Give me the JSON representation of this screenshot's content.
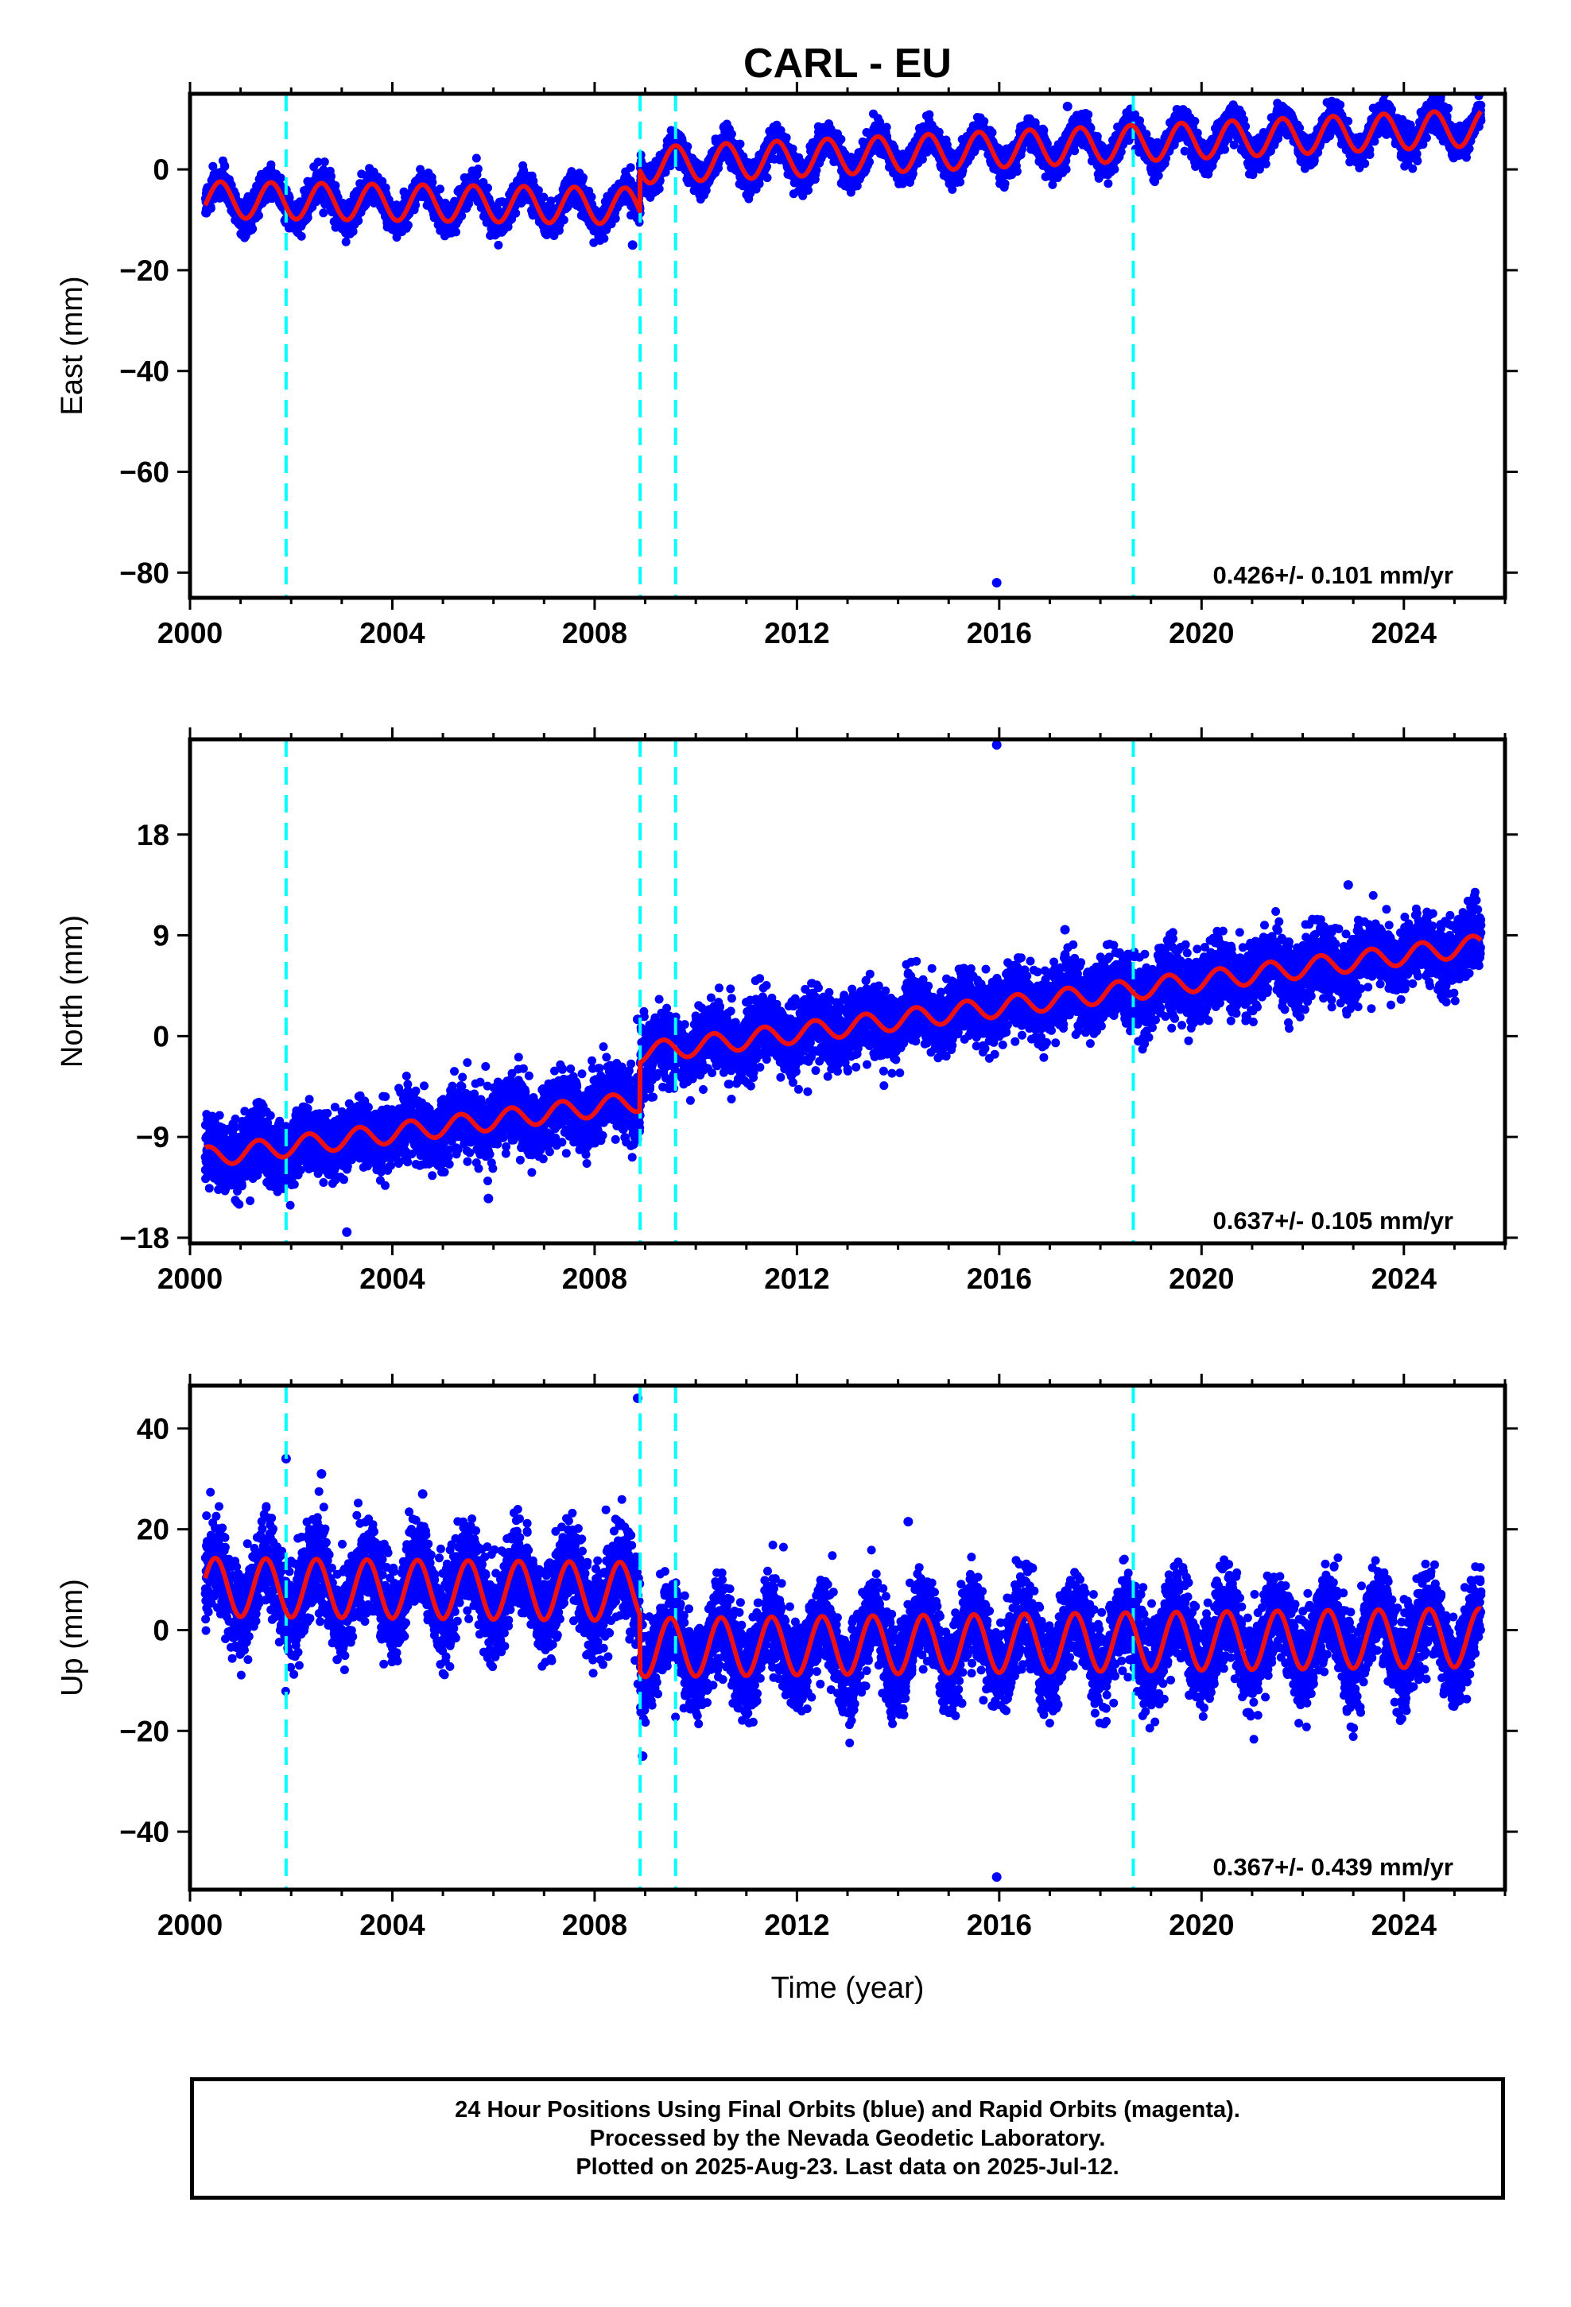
{
  "figure_title": "CARL - EU",
  "time_label": "Time (year)",
  "colors": {
    "points": "#0000ff",
    "fit": "#ee1111",
    "breaks": "#00ffff",
    "frame": "#000000"
  },
  "chart_data": [
    {
      "type": "scatter",
      "component": "East",
      "ylabel": "East (mm)",
      "xlim": [
        2000.0,
        2026.0
      ],
      "ylim": [
        -85,
        15
      ],
      "x_ticks": [
        2000,
        2004,
        2008,
        2012,
        2016,
        2020,
        2024
      ],
      "y_ticks": [
        0,
        -20,
        -40,
        -60,
        -80
      ],
      "x_tick_labels": [
        "2000",
        "2004",
        "2008",
        "2012",
        "2016",
        "2020",
        "2024"
      ],
      "y_tick_labels": [
        "0",
        "−20",
        "−40",
        "−60",
        "−80"
      ],
      "rate_label": "0.426+/- 0.101 mm/yr",
      "break_years": [
        2001.9,
        2008.9,
        2009.6,
        2018.65
      ],
      "data_start": 2000.3,
      "data_end": 2025.53,
      "segments": [
        {
          "start": 2000.3,
          "end": 2008.9,
          "offset": -6.0,
          "rate": -0.15,
          "ref": 2000.3
        },
        {
          "start": 2008.9,
          "end": 2025.53,
          "offset": 0.8,
          "rate": 0.45,
          "ref": 2008.9
        }
      ],
      "seasonal_amplitude": 3.6,
      "seasonal_phase": 0.35,
      "scatter_sd": 1.5,
      "outliers": [
        {
          "x": 2015.95,
          "y": -82.0
        },
        {
          "x": 2008.75,
          "y": -15.0
        },
        {
          "x": 2017.35,
          "y": 12.5
        }
      ]
    },
    {
      "type": "scatter",
      "component": "North",
      "ylabel": "North (mm)",
      "xlim": [
        2000.0,
        2026.0
      ],
      "ylim": [
        -18.5,
        26.5
      ],
      "x_ticks": [
        2000,
        2004,
        2008,
        2012,
        2016,
        2020,
        2024
      ],
      "y_ticks": [
        18,
        9,
        0,
        -9,
        -18
      ],
      "x_tick_labels": [
        "2000",
        "2004",
        "2008",
        "2012",
        "2016",
        "2020",
        "2024"
      ],
      "y_tick_labels": [
        "18",
        "9",
        "0",
        "−9",
        "−18"
      ],
      "rate_label": "0.637+/- 0.105 mm/yr",
      "break_years": [
        2001.9,
        2008.9,
        2009.6,
        2018.65
      ],
      "data_start": 2000.3,
      "data_end": 2025.53,
      "segments": [
        {
          "start": 2000.3,
          "end": 2008.9,
          "offset": -10.8,
          "rate": 0.58,
          "ref": 2000.3
        },
        {
          "start": 2008.9,
          "end": 2025.53,
          "offset": -1.5,
          "rate": 0.58,
          "ref": 2008.9
        }
      ],
      "seasonal_amplitude": 0.9,
      "seasonal_phase": 0.1,
      "scatter_sd": 1.5,
      "outliers": [
        {
          "x": 2015.95,
          "y": 26.0
        },
        {
          "x": 2003.1,
          "y": -17.5
        },
        {
          "x": 2022.9,
          "y": 13.5
        },
        {
          "x": 2008.85,
          "y": 1.5
        },
        {
          "x": 2017.3,
          "y": 9.5
        },
        {
          "x": 2005.9,
          "y": -14.5
        }
      ]
    },
    {
      "type": "scatter",
      "component": "Up",
      "ylabel": "Up (mm)",
      "xlim": [
        2000.0,
        2026.0
      ],
      "ylim": [
        -51.5,
        48.5
      ],
      "x_ticks": [
        2000,
        2004,
        2008,
        2012,
        2016,
        2020,
        2024
      ],
      "y_ticks": [
        40,
        20,
        0,
        -20,
        -40
      ],
      "x_tick_labels": [
        "2000",
        "2004",
        "2008",
        "2012",
        "2016",
        "2020",
        "2024"
      ],
      "y_tick_labels": [
        "40",
        "20",
        "0",
        "−20",
        "−40"
      ],
      "rate_label": "0.367+/- 0.439 mm/yr",
      "break_years": [
        2001.9,
        2008.9,
        2009.6,
        2018.65
      ],
      "data_start": 2000.3,
      "data_end": 2025.53,
      "segments": [
        {
          "start": 2000.3,
          "end": 2008.9,
          "offset": 8.5,
          "rate": -0.1,
          "ref": 2000.3
        },
        {
          "start": 2008.9,
          "end": 2025.53,
          "offset": -3.5,
          "rate": 0.12,
          "ref": 2008.9
        }
      ],
      "seasonal_amplitude": 5.8,
      "seasonal_phase": 0.25,
      "scatter_sd": 4.5,
      "outliers": [
        {
          "x": 2008.85,
          "y": 46.0
        },
        {
          "x": 2015.95,
          "y": -49.0
        },
        {
          "x": 2001.9,
          "y": 34.0
        },
        {
          "x": 2002.6,
          "y": 31.0
        },
        {
          "x": 2004.6,
          "y": 27.0
        },
        {
          "x": 2008.95,
          "y": -25.0
        },
        {
          "x": 2014.2,
          "y": 21.5
        }
      ]
    }
  ],
  "footer": {
    "line1": "24 Hour Positions Using Final Orbits (blue) and Rapid Orbits (magenta).",
    "line2": "Processed by the Nevada Geodetic Laboratory.",
    "line3": "Plotted on 2025-Aug-23. Last data on 2025-Jul-12."
  }
}
